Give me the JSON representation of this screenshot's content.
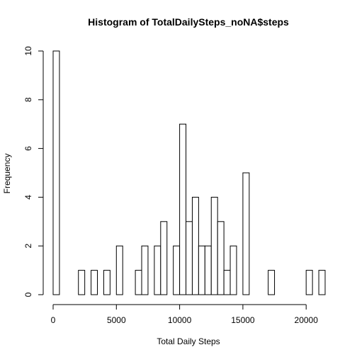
{
  "chart_data": {
    "type": "bar",
    "title": "Histogram of TotalDailySteps_noNA$steps",
    "xlabel": "Total Daily Steps",
    "ylabel": "Frequency",
    "bin_width": 500,
    "bin_start": 0,
    "values": [
      10,
      0,
      0,
      0,
      1,
      0,
      1,
      0,
      1,
      0,
      2,
      0,
      0,
      1,
      2,
      0,
      2,
      3,
      0,
      2,
      7,
      3,
      4,
      2,
      2,
      4,
      3,
      1,
      2,
      0,
      5,
      0,
      0,
      0,
      1,
      0,
      0,
      0,
      0,
      0,
      1,
      0,
      1
    ],
    "xlim": [
      0,
      21500
    ],
    "ylim": [
      0,
      10
    ],
    "x_ticks": [
      0,
      5000,
      10000,
      15000,
      20000
    ],
    "x_tick_labels": [
      "0",
      "5000",
      "10000",
      "15000",
      "20000"
    ],
    "y_ticks": [
      0,
      2,
      4,
      6,
      8,
      10
    ],
    "y_tick_labels": [
      "0",
      "2",
      "4",
      "6",
      "8",
      "10"
    ],
    "grid": false,
    "bar_fill": "#ffffff",
    "bar_stroke": "#000000"
  }
}
